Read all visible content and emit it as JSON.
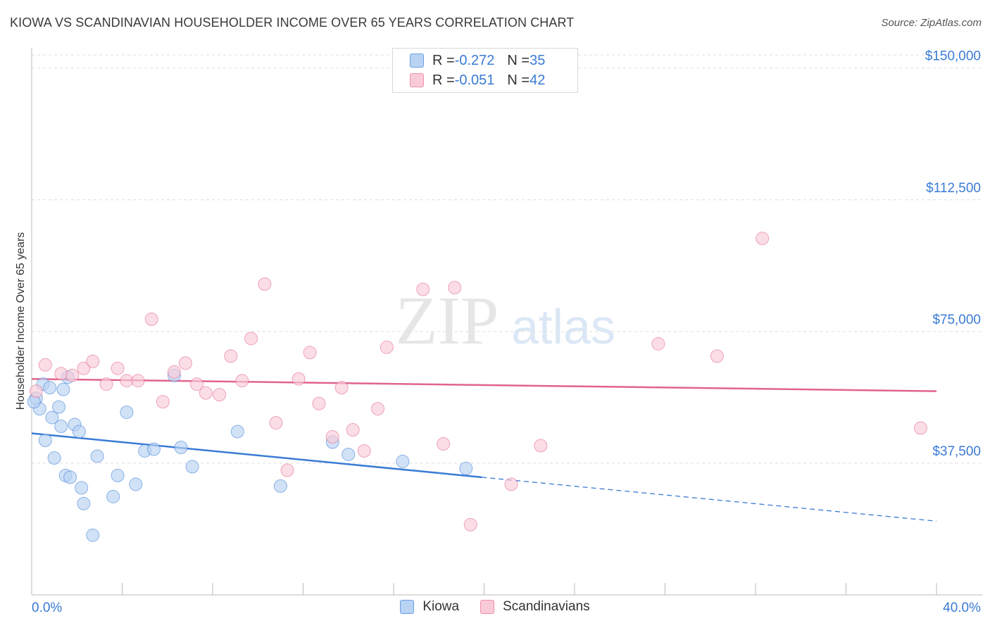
{
  "title": "KIOWA VS SCANDINAVIAN HOUSEHOLDER INCOME OVER 65 YEARS CORRELATION CHART",
  "source": "Source: ZipAtlas.com",
  "watermark": {
    "zip": "ZIP",
    "atlas": "atlas"
  },
  "stats": [
    {
      "r_label": "R = ",
      "r_value": "-0.272",
      "n_label": "N = ",
      "n_value": "35",
      "fill": "#b9d3f3",
      "stroke": "#6b9ee0"
    },
    {
      "r_label": "R = ",
      "r_value": "-0.051",
      "n_label": "N = ",
      "n_value": "42",
      "fill": "#f9cbd8",
      "stroke": "#ee8fab"
    }
  ],
  "legend": [
    {
      "label": "Kiowa",
      "fill": "#b9d3f3",
      "stroke": "#6b9ee0"
    },
    {
      "label": "Scandinavians",
      "fill": "#f9cbd8",
      "stroke": "#ee8fab"
    }
  ],
  "chart_data": {
    "type": "scatter",
    "title": "KIOWA VS SCANDINAVIAN HOUSEHOLDER INCOME OVER 65 YEARS CORRELATION CHART",
    "xlabel": "",
    "ylabel": "Householder Income Over 65 years",
    "xlim": [
      0,
      40
    ],
    "ylim": [
      0,
      153750
    ],
    "x_tick_labels": [
      "0.0%",
      "40.0%"
    ],
    "y_ticks": [
      37500,
      75000,
      112500,
      150000
    ],
    "y_tick_labels": [
      "$37,500",
      "$75,000",
      "$112,500",
      "$150,000"
    ],
    "grid": true,
    "legend_position": "bottom-center",
    "series": [
      {
        "name": "Kiowa",
        "color": "#3a7bd5",
        "fill": "#b9d3f3",
        "points": [
          [
            0.2,
            56000
          ],
          [
            0.35,
            53000
          ],
          [
            0.5,
            60000
          ],
          [
            0.6,
            44000
          ],
          [
            0.8,
            59000
          ],
          [
            0.9,
            50500
          ],
          [
            1.0,
            39000
          ],
          [
            1.2,
            53500
          ],
          [
            1.3,
            48000
          ],
          [
            1.4,
            58500
          ],
          [
            1.5,
            34000
          ],
          [
            1.6,
            62000
          ],
          [
            1.7,
            33500
          ],
          [
            1.9,
            48500
          ],
          [
            2.1,
            46500
          ],
          [
            2.2,
            30500
          ],
          [
            2.3,
            26000
          ],
          [
            2.7,
            17000
          ],
          [
            2.9,
            39500
          ],
          [
            3.6,
            28000
          ],
          [
            3.8,
            34000
          ],
          [
            4.2,
            52000
          ],
          [
            4.6,
            31500
          ],
          [
            5.0,
            41000
          ],
          [
            5.4,
            41500
          ],
          [
            6.3,
            62500
          ],
          [
            6.6,
            42000
          ],
          [
            7.1,
            36500
          ],
          [
            9.1,
            46500
          ],
          [
            11.0,
            31000
          ],
          [
            13.3,
            43500
          ],
          [
            14.0,
            40000
          ],
          [
            16.4,
            38000
          ],
          [
            19.2,
            36000
          ],
          [
            0.1,
            55000
          ]
        ],
        "trend": {
          "x1": 0,
          "y1": 46000,
          "x2": 19.9,
          "y2": 33500,
          "dash_to_x": 40,
          "dash_to_y": 21000
        }
      },
      {
        "name": "Scandinavians",
        "color": "#e0648c",
        "fill": "#f9cbd8",
        "points": [
          [
            0.2,
            58000
          ],
          [
            0.6,
            65500
          ],
          [
            1.3,
            63000
          ],
          [
            1.8,
            62500
          ],
          [
            2.3,
            64500
          ],
          [
            2.7,
            66500
          ],
          [
            3.3,
            60000
          ],
          [
            3.8,
            64500
          ],
          [
            4.2,
            61000
          ],
          [
            4.7,
            61000
          ],
          [
            5.3,
            78500
          ],
          [
            5.8,
            55000
          ],
          [
            6.3,
            63500
          ],
          [
            6.8,
            66000
          ],
          [
            7.3,
            60000
          ],
          [
            7.7,
            57500
          ],
          [
            8.3,
            57000
          ],
          [
            8.8,
            68000
          ],
          [
            9.3,
            61000
          ],
          [
            9.7,
            73000
          ],
          [
            10.3,
            88500
          ],
          [
            10.8,
            49000
          ],
          [
            11.3,
            35500
          ],
          [
            11.8,
            61500
          ],
          [
            12.3,
            69000
          ],
          [
            12.7,
            54500
          ],
          [
            13.3,
            45000
          ],
          [
            13.7,
            59000
          ],
          [
            14.2,
            47000
          ],
          [
            14.7,
            41000
          ],
          [
            15.3,
            53000
          ],
          [
            15.7,
            70500
          ],
          [
            17.3,
            87000
          ],
          [
            18.2,
            43000
          ],
          [
            18.7,
            87500
          ],
          [
            19.4,
            20000
          ],
          [
            21.2,
            31500
          ],
          [
            22.5,
            42500
          ],
          [
            27.7,
            71500
          ],
          [
            30.3,
            68000
          ],
          [
            32.3,
            101500
          ],
          [
            39.3,
            47500
          ]
        ],
        "trend": {
          "x1": 0,
          "y1": 61500,
          "x2": 40,
          "y2": 58000
        }
      }
    ]
  }
}
